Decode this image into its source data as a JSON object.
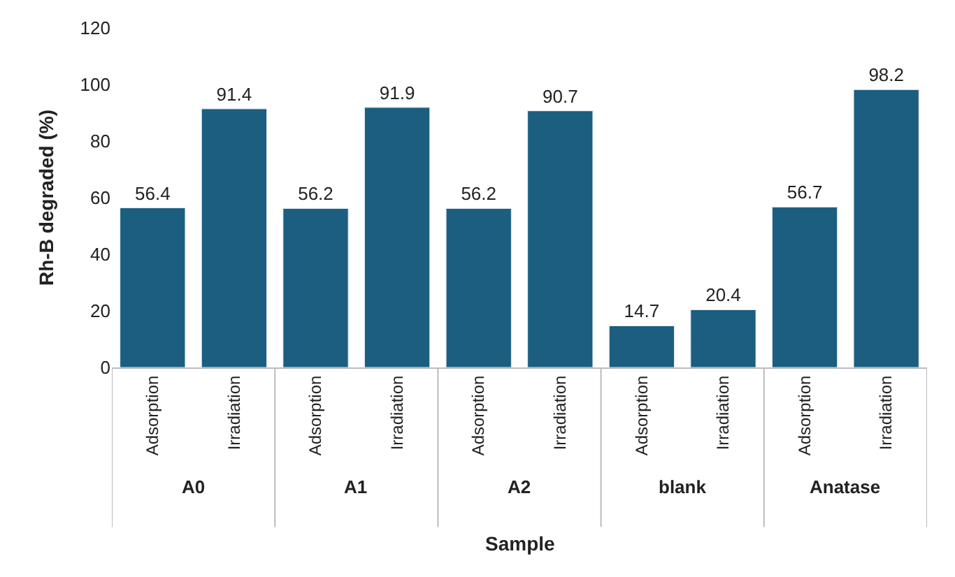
{
  "chart_data": {
    "type": "bar",
    "xlabel": "Sample",
    "ylabel": "Rh-B degraded (%)",
    "categories": [
      "Adsorption",
      "Irradiation",
      "Adsorption",
      "Irradiation",
      "Adsorption",
      "Irradiation",
      "Adsorption",
      "Irradiation",
      "Adsorption",
      "Irradiation"
    ],
    "values": [
      56.4,
      91.4,
      56.2,
      91.9,
      56.2,
      90.7,
      14.7,
      20.4,
      56.7,
      98.2
    ],
    "color": "#1b5e7f",
    "ylim": [
      0,
      120
    ],
    "yticks": [
      0,
      20,
      40,
      60,
      80,
      100,
      120
    ],
    "data_labels": true,
    "legend": false,
    "annotations": [
      "A0",
      "A1",
      "A2",
      "blank",
      "Anatase"
    ]
  }
}
